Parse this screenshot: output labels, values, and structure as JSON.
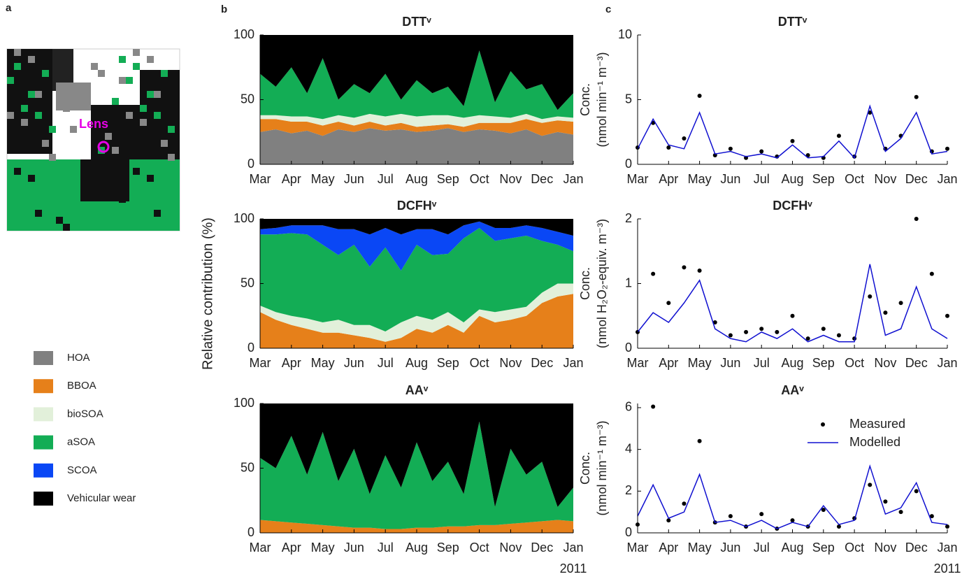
{
  "panel_labels": [
    "a",
    "b",
    "c"
  ],
  "map": {
    "label": "Lens"
  },
  "legend": [
    {
      "name": "HOA",
      "color": "#808080"
    },
    {
      "name": "BBOA",
      "color": "#e6801a"
    },
    {
      "name": "bioSOA",
      "color": "#e2f0da"
    },
    {
      "name": "aSOA",
      "color": "#13ad55"
    },
    {
      "name": "SCOA",
      "color": "#0a47f5"
    },
    {
      "name": "Vehicular wear",
      "color": "#000000"
    }
  ],
  "panel_b_ylabel": "Relative contribution (%)",
  "chart_data": [
    {
      "type": "area",
      "title": "DTTᵛ",
      "x": [
        0,
        0.5,
        1,
        1.5,
        2,
        2.5,
        3,
        3.5,
        4,
        4.5,
        5,
        5.5,
        6,
        6.5,
        7,
        7.5,
        8,
        8.5,
        9,
        9.5,
        10
      ],
      "xlim": [
        0,
        10
      ],
      "xticks": [
        {
          "value": 0,
          "label": "Mar"
        },
        {
          "value": 1,
          "label": "Apr"
        },
        {
          "value": 2,
          "label": "May"
        },
        {
          "value": 3,
          "label": "Jun"
        },
        {
          "value": 4,
          "label": "Jul"
        },
        {
          "value": 5,
          "label": "Aug"
        },
        {
          "value": 6,
          "label": "Sep"
        },
        {
          "value": 7,
          "label": "Oct"
        },
        {
          "value": 8,
          "label": "Nov"
        },
        {
          "value": 9,
          "label": "Dec"
        },
        {
          "value": 10,
          "label": "Jan"
        }
      ],
      "ylim": [
        0,
        100
      ],
      "yticks": [
        0,
        50,
        100
      ],
      "series": [
        {
          "name": "HOA",
          "color": "#808080",
          "values": [
            25,
            27,
            24,
            26,
            22,
            27,
            25,
            28,
            26,
            27,
            25,
            26,
            28,
            25,
            27,
            26,
            24,
            27,
            22,
            25,
            23
          ]
        },
        {
          "name": "BBOA",
          "color": "#e6801a",
          "values": [
            10,
            8,
            9,
            7,
            8,
            6,
            5,
            5,
            4,
            5,
            4,
            4,
            3,
            4,
            5,
            6,
            8,
            8,
            10,
            9,
            10
          ]
        },
        {
          "name": "bioSOA",
          "color": "#e2f0da",
          "values": [
            3,
            3,
            4,
            4,
            5,
            5,
            6,
            6,
            7,
            7,
            8,
            8,
            7,
            7,
            6,
            5,
            4,
            4,
            3,
            3,
            3
          ]
        },
        {
          "name": "aSOA",
          "color": "#13ad55",
          "values": [
            32,
            22,
            38,
            18,
            47,
            12,
            26,
            16,
            33,
            11,
            28,
            17,
            22,
            9,
            50,
            11,
            36,
            19,
            27,
            5,
            19
          ]
        },
        {
          "name": "Vehicular wear",
          "color": "#000000",
          "values": [
            30,
            40,
            25,
            45,
            18,
            50,
            38,
            45,
            30,
            50,
            35,
            45,
            40,
            55,
            12,
            52,
            28,
            42,
            38,
            58,
            45
          ]
        }
      ]
    },
    {
      "type": "area",
      "title": "DCFHᵛ",
      "x": [
        0,
        0.5,
        1,
        1.5,
        2,
        2.5,
        3,
        3.5,
        4,
        4.5,
        5,
        5.5,
        6,
        6.5,
        7,
        7.5,
        8,
        8.5,
        9,
        9.5,
        10
      ],
      "xlim": [
        0,
        10
      ],
      "xticks": [
        {
          "value": 0,
          "label": "Mar"
        },
        {
          "value": 1,
          "label": "Apr"
        },
        {
          "value": 2,
          "label": "May"
        },
        {
          "value": 3,
          "label": "Jun"
        },
        {
          "value": 4,
          "label": "Jul"
        },
        {
          "value": 5,
          "label": "Aug"
        },
        {
          "value": 6,
          "label": "Sep"
        },
        {
          "value": 7,
          "label": "Oct"
        },
        {
          "value": 8,
          "label": "Nov"
        },
        {
          "value": 9,
          "label": "Dec"
        },
        {
          "value": 10,
          "label": "Jan"
        }
      ],
      "ylim": [
        0,
        100
      ],
      "yticks": [
        0,
        50,
        100
      ],
      "series": [
        {
          "name": "BBOA",
          "color": "#e6801a",
          "values": [
            28,
            22,
            18,
            15,
            12,
            12,
            10,
            8,
            5,
            8,
            15,
            12,
            18,
            12,
            25,
            20,
            22,
            25,
            35,
            40,
            42
          ]
        },
        {
          "name": "bioSOA",
          "color": "#e2f0da",
          "values": [
            5,
            6,
            7,
            8,
            8,
            10,
            8,
            10,
            8,
            12,
            10,
            10,
            10,
            8,
            5,
            8,
            8,
            7,
            8,
            10,
            8
          ]
        },
        {
          "name": "aSOA",
          "color": "#13ad55",
          "values": [
            55,
            60,
            64,
            65,
            60,
            50,
            62,
            45,
            65,
            40,
            55,
            50,
            45,
            65,
            63,
            55,
            55,
            55,
            40,
            30,
            25
          ]
        },
        {
          "name": "SCOA",
          "color": "#0a47f5",
          "values": [
            4,
            5,
            6,
            7,
            15,
            20,
            12,
            25,
            15,
            28,
            12,
            20,
            15,
            10,
            5,
            10,
            8,
            8,
            10,
            10,
            12
          ]
        },
        {
          "name": "Vehicular wear",
          "color": "#000000",
          "values": [
            8,
            7,
            5,
            5,
            5,
            8,
            8,
            12,
            7,
            12,
            8,
            8,
            12,
            5,
            2,
            7,
            7,
            5,
            7,
            10,
            13
          ]
        }
      ]
    },
    {
      "type": "area",
      "title": "AAᵛ",
      "x_note": "2011",
      "x": [
        0,
        0.5,
        1,
        1.5,
        2,
        2.5,
        3,
        3.5,
        4,
        4.5,
        5,
        5.5,
        6,
        6.5,
        7,
        7.5,
        8,
        8.5,
        9,
        9.5,
        10
      ],
      "xlim": [
        0,
        10
      ],
      "xticks": [
        {
          "value": 0,
          "label": "Mar"
        },
        {
          "value": 1,
          "label": "Apr"
        },
        {
          "value": 2,
          "label": "May"
        },
        {
          "value": 3,
          "label": "Jun"
        },
        {
          "value": 4,
          "label": "Jul"
        },
        {
          "value": 5,
          "label": "Aug"
        },
        {
          "value": 6,
          "label": "Sep"
        },
        {
          "value": 7,
          "label": "Oct"
        },
        {
          "value": 8,
          "label": "Nov"
        },
        {
          "value": 9,
          "label": "Dec"
        },
        {
          "value": 10,
          "label": "Jan"
        }
      ],
      "ylim": [
        0,
        100
      ],
      "yticks": [
        0,
        50,
        100
      ],
      "series": [
        {
          "name": "BBOA",
          "color": "#e6801a",
          "values": [
            10,
            9,
            8,
            7,
            6,
            5,
            4,
            4,
            3,
            3,
            4,
            4,
            5,
            5,
            6,
            6,
            7,
            8,
            9,
            10,
            9
          ]
        },
        {
          "name": "aSOA",
          "color": "#13ad55",
          "values": [
            48,
            41,
            67,
            38,
            72,
            35,
            61,
            26,
            57,
            32,
            66,
            36,
            50,
            25,
            80,
            14,
            58,
            37,
            46,
            10,
            26
          ]
        },
        {
          "name": "Vehicular wear",
          "color": "#000000",
          "values": [
            42,
            50,
            25,
            55,
            22,
            60,
            35,
            70,
            40,
            65,
            30,
            60,
            45,
            70,
            14,
            80,
            35,
            55,
            45,
            80,
            65
          ]
        }
      ]
    },
    {
      "type": "line",
      "title": "DTTᵛ",
      "ylabel": [
        "Conc.",
        "(nmol min⁻¹ m⁻³)"
      ],
      "x": [
        0,
        0.5,
        1,
        1.5,
        2,
        2.5,
        3,
        3.5,
        4,
        4.5,
        5,
        5.5,
        6,
        6.5,
        7,
        7.5,
        8,
        8.5,
        9,
        9.5,
        10
      ],
      "xlim": [
        0,
        10
      ],
      "xticks": [
        {
          "value": 0,
          "label": "Mar"
        },
        {
          "value": 1,
          "label": "Apr"
        },
        {
          "value": 2,
          "label": "May"
        },
        {
          "value": 3,
          "label": "Jun"
        },
        {
          "value": 4,
          "label": "Jul"
        },
        {
          "value": 5,
          "label": "Aug"
        },
        {
          "value": 6,
          "label": "Sep"
        },
        {
          "value": 7,
          "label": "Oct"
        },
        {
          "value": 8,
          "label": "Nov"
        },
        {
          "value": 9,
          "label": "Dec"
        },
        {
          "value": 10,
          "label": "Jan"
        }
      ],
      "ylim": [
        0,
        10
      ],
      "yticks": [
        0,
        5,
        10
      ],
      "series": [
        {
          "name": "Measured",
          "style": "markers",
          "color": "#000000",
          "values": [
            1.3,
            3.2,
            1.3,
            2.0,
            5.3,
            0.7,
            1.2,
            0.5,
            1.0,
            0.6,
            1.8,
            0.7,
            0.5,
            2.2,
            0.6,
            4.0,
            1.2,
            2.2,
            5.2,
            1.0,
            1.2
          ]
        },
        {
          "name": "Modelled",
          "style": "line",
          "color": "#1010d0",
          "values": [
            1.2,
            3.5,
            1.5,
            1.2,
            4.0,
            0.8,
            1.0,
            0.6,
            0.8,
            0.5,
            1.5,
            0.5,
            0.6,
            1.8,
            0.5,
            4.5,
            1.0,
            2.0,
            4.0,
            0.8,
            1.0
          ]
        }
      ]
    },
    {
      "type": "line",
      "title": "DCFHᵛ",
      "ylabel": [
        "Conc.",
        "(nmol H₂O₂-equiv. m⁻³)"
      ],
      "x": [
        0,
        0.5,
        1,
        1.5,
        2,
        2.5,
        3,
        3.5,
        4,
        4.5,
        5,
        5.5,
        6,
        6.5,
        7,
        7.5,
        8,
        8.5,
        9,
        9.5,
        10
      ],
      "xlim": [
        0,
        10
      ],
      "xticks": [
        {
          "value": 0,
          "label": "Mar"
        },
        {
          "value": 1,
          "label": "Apr"
        },
        {
          "value": 2,
          "label": "May"
        },
        {
          "value": 3,
          "label": "Jun"
        },
        {
          "value": 4,
          "label": "Jul"
        },
        {
          "value": 5,
          "label": "Aug"
        },
        {
          "value": 6,
          "label": "Sep"
        },
        {
          "value": 7,
          "label": "Oct"
        },
        {
          "value": 8,
          "label": "Nov"
        },
        {
          "value": 9,
          "label": "Dec"
        },
        {
          "value": 10,
          "label": "Jan"
        }
      ],
      "ylim": [
        0,
        2
      ],
      "yticks": [
        0,
        1,
        2
      ],
      "series": [
        {
          "name": "Measured",
          "style": "markers",
          "color": "#000000",
          "values": [
            0.25,
            1.15,
            0.7,
            1.25,
            1.2,
            0.4,
            0.2,
            0.25,
            0.3,
            0.25,
            0.5,
            0.15,
            0.3,
            0.2,
            0.15,
            0.8,
            0.55,
            0.7,
            2.0,
            1.15,
            0.5
          ]
        },
        {
          "name": "Modelled",
          "style": "line",
          "color": "#1010d0",
          "values": [
            0.25,
            0.55,
            0.4,
            0.7,
            1.05,
            0.3,
            0.15,
            0.1,
            0.25,
            0.15,
            0.3,
            0.1,
            0.2,
            0.1,
            0.1,
            1.3,
            0.2,
            0.3,
            0.95,
            0.3,
            0.15
          ]
        }
      ]
    },
    {
      "type": "line",
      "title": "AAᵛ",
      "ylabel": [
        "Conc.",
        "(nmol min⁻¹ m⁻³)"
      ],
      "x_note": "2011",
      "legend": "upper right",
      "x": [
        0,
        0.5,
        1,
        1.5,
        2,
        2.5,
        3,
        3.5,
        4,
        4.5,
        5,
        5.5,
        6,
        6.5,
        7,
        7.5,
        8,
        8.5,
        9,
        9.5,
        10
      ],
      "xlim": [
        0,
        10
      ],
      "xticks": [
        {
          "value": 0,
          "label": "Mar"
        },
        {
          "value": 1,
          "label": "Apr"
        },
        {
          "value": 2,
          "label": "May"
        },
        {
          "value": 3,
          "label": "Jun"
        },
        {
          "value": 4,
          "label": "Jul"
        },
        {
          "value": 5,
          "label": "Aug"
        },
        {
          "value": 6,
          "label": "Sep"
        },
        {
          "value": 7,
          "label": "Oct"
        },
        {
          "value": 8,
          "label": "Nov"
        },
        {
          "value": 9,
          "label": "Dec"
        },
        {
          "value": 10,
          "label": "Jan"
        }
      ],
      "ylim": [
        0,
        6.2
      ],
      "yticks": [
        0,
        2,
        4,
        6
      ],
      "series": [
        {
          "name": "Measured",
          "style": "markers",
          "color": "#000000",
          "values": [
            0.4,
            6.05,
            0.6,
            1.4,
            4.4,
            0.5,
            0.8,
            0.3,
            0.9,
            0.2,
            0.6,
            0.3,
            1.1,
            0.3,
            0.7,
            2.3,
            1.5,
            1.0,
            2.0,
            0.8,
            0.3
          ]
        },
        {
          "name": "Modelled",
          "style": "line",
          "color": "#1010d0",
          "values": [
            0.8,
            2.3,
            0.7,
            1.0,
            2.8,
            0.5,
            0.6,
            0.3,
            0.6,
            0.2,
            0.5,
            0.3,
            1.3,
            0.4,
            0.6,
            3.2,
            0.9,
            1.2,
            2.4,
            0.5,
            0.4
          ]
        }
      ]
    }
  ]
}
